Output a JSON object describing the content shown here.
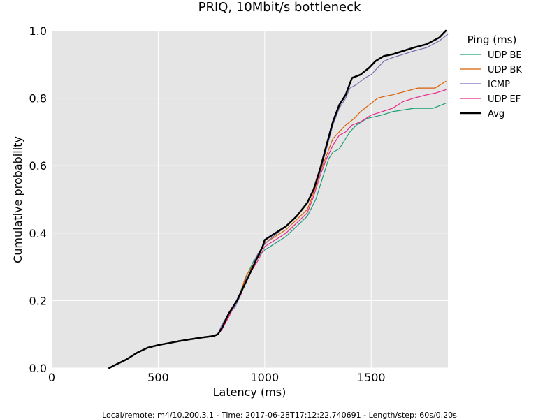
{
  "chart_data": {
    "type": "line",
    "title": "PRIQ, 10Mbit/s bottleneck",
    "xlabel": "Latency (ms)",
    "ylabel": "Cumulative probability",
    "xlim": [
      0,
      1860
    ],
    "ylim": [
      0,
      1.0
    ],
    "x_ticks": [
      "0",
      "500",
      "1000",
      "1500"
    ],
    "x_tick_values": [
      0,
      500,
      1000,
      1500
    ],
    "y_ticks": [
      "0.0",
      "0.2",
      "0.4",
      "0.6",
      "0.8",
      "1.0"
    ],
    "y_tick_values": [
      0,
      0.2,
      0.4,
      0.6,
      0.8,
      1.0
    ],
    "grid": true,
    "background": "#e5e5e5",
    "legend": {
      "title": "Ping (ms)",
      "placement": "outside-right"
    },
    "footer": "Local/remote: m4/10.200.3.1 - Time: 2017-06-28T17:12:22.740691 - Length/step: 60s/0.20s",
    "series": [
      {
        "name": "UDP BE",
        "color": "#1b9e77",
        "width": 1.2,
        "points": [
          [
            780,
            0.1
          ],
          [
            800,
            0.12
          ],
          [
            830,
            0.16
          ],
          [
            870,
            0.2
          ],
          [
            900,
            0.25
          ],
          [
            920,
            0.28
          ],
          [
            950,
            0.32
          ],
          [
            970,
            0.33
          ],
          [
            1000,
            0.35
          ],
          [
            1050,
            0.37
          ],
          [
            1100,
            0.39
          ],
          [
            1150,
            0.42
          ],
          [
            1200,
            0.45
          ],
          [
            1240,
            0.5
          ],
          [
            1270,
            0.56
          ],
          [
            1300,
            0.62
          ],
          [
            1320,
            0.64
          ],
          [
            1350,
            0.65
          ],
          [
            1380,
            0.68
          ],
          [
            1400,
            0.7
          ],
          [
            1430,
            0.72
          ],
          [
            1480,
            0.74
          ],
          [
            1550,
            0.75
          ],
          [
            1600,
            0.76
          ],
          [
            1700,
            0.77
          ],
          [
            1790,
            0.77
          ],
          [
            1850,
            0.785
          ]
        ]
      },
      {
        "name": "UDP BK",
        "color": "#d95f02",
        "width": 1.2,
        "points": [
          [
            780,
            0.1
          ],
          [
            800,
            0.12
          ],
          [
            830,
            0.15
          ],
          [
            870,
            0.2
          ],
          [
            890,
            0.23
          ],
          [
            910,
            0.27
          ],
          [
            940,
            0.3
          ],
          [
            970,
            0.33
          ],
          [
            1000,
            0.37
          ],
          [
            1050,
            0.39
          ],
          [
            1100,
            0.41
          ],
          [
            1150,
            0.44
          ],
          [
            1200,
            0.47
          ],
          [
            1230,
            0.52
          ],
          [
            1260,
            0.58
          ],
          [
            1290,
            0.63
          ],
          [
            1320,
            0.68
          ],
          [
            1350,
            0.7
          ],
          [
            1380,
            0.72
          ],
          [
            1420,
            0.74
          ],
          [
            1450,
            0.76
          ],
          [
            1490,
            0.78
          ],
          [
            1530,
            0.8
          ],
          [
            1560,
            0.805
          ],
          [
            1600,
            0.81
          ],
          [
            1660,
            0.82
          ],
          [
            1720,
            0.83
          ],
          [
            1800,
            0.83
          ],
          [
            1850,
            0.85
          ]
        ]
      },
      {
        "name": "ICMP",
        "color": "#7570b3",
        "width": 1.2,
        "points": [
          [
            270,
            0.0
          ],
          [
            300,
            0.01
          ],
          [
            350,
            0.025
          ],
          [
            400,
            0.045
          ],
          [
            450,
            0.06
          ],
          [
            500,
            0.068
          ],
          [
            550,
            0.074
          ],
          [
            600,
            0.08
          ],
          [
            650,
            0.085
          ],
          [
            700,
            0.09
          ],
          [
            760,
            0.095
          ],
          [
            780,
            0.1
          ],
          [
            800,
            0.13
          ],
          [
            830,
            0.16
          ],
          [
            860,
            0.18
          ],
          [
            890,
            0.22
          ],
          [
            910,
            0.26
          ],
          [
            940,
            0.29
          ],
          [
            960,
            0.33
          ],
          [
            990,
            0.36
          ],
          [
            1020,
            0.38
          ],
          [
            1060,
            0.4
          ],
          [
            1100,
            0.42
          ],
          [
            1150,
            0.45
          ],
          [
            1200,
            0.49
          ],
          [
            1230,
            0.53
          ],
          [
            1260,
            0.58
          ],
          [
            1290,
            0.65
          ],
          [
            1320,
            0.72
          ],
          [
            1350,
            0.77
          ],
          [
            1380,
            0.8
          ],
          [
            1400,
            0.83
          ],
          [
            1430,
            0.84
          ],
          [
            1470,
            0.86
          ],
          [
            1500,
            0.87
          ],
          [
            1530,
            0.89
          ],
          [
            1560,
            0.91
          ],
          [
            1600,
            0.92
          ],
          [
            1650,
            0.93
          ],
          [
            1700,
            0.94
          ],
          [
            1760,
            0.95
          ],
          [
            1820,
            0.97
          ],
          [
            1860,
            0.99
          ]
        ]
      },
      {
        "name": "UDP EF",
        "color": "#e7298a",
        "width": 1.2,
        "points": [
          [
            780,
            0.1
          ],
          [
            800,
            0.115
          ],
          [
            830,
            0.15
          ],
          [
            860,
            0.19
          ],
          [
            890,
            0.22
          ],
          [
            910,
            0.26
          ],
          [
            940,
            0.29
          ],
          [
            970,
            0.32
          ],
          [
            1000,
            0.36
          ],
          [
            1050,
            0.38
          ],
          [
            1100,
            0.4
          ],
          [
            1150,
            0.43
          ],
          [
            1200,
            0.46
          ],
          [
            1230,
            0.51
          ],
          [
            1260,
            0.57
          ],
          [
            1290,
            0.62
          ],
          [
            1320,
            0.66
          ],
          [
            1350,
            0.69
          ],
          [
            1380,
            0.7
          ],
          [
            1410,
            0.72
          ],
          [
            1450,
            0.73
          ],
          [
            1500,
            0.75
          ],
          [
            1550,
            0.76
          ],
          [
            1600,
            0.77
          ],
          [
            1650,
            0.79
          ],
          [
            1700,
            0.8
          ],
          [
            1760,
            0.81
          ],
          [
            1800,
            0.815
          ],
          [
            1850,
            0.825
          ]
        ]
      },
      {
        "name": "Avg",
        "color": "#000000",
        "width": 2.5,
        "points": [
          [
            270,
            0.0
          ],
          [
            300,
            0.01
          ],
          [
            350,
            0.025
          ],
          [
            400,
            0.045
          ],
          [
            450,
            0.06
          ],
          [
            500,
            0.068
          ],
          [
            550,
            0.074
          ],
          [
            600,
            0.08
          ],
          [
            650,
            0.085
          ],
          [
            700,
            0.09
          ],
          [
            760,
            0.095
          ],
          [
            780,
            0.1
          ],
          [
            800,
            0.12
          ],
          [
            830,
            0.16
          ],
          [
            870,
            0.2
          ],
          [
            900,
            0.24
          ],
          [
            930,
            0.28
          ],
          [
            960,
            0.32
          ],
          [
            990,
            0.36
          ],
          [
            1000,
            0.38
          ],
          [
            1050,
            0.4
          ],
          [
            1100,
            0.42
          ],
          [
            1150,
            0.45
          ],
          [
            1200,
            0.49
          ],
          [
            1230,
            0.53
          ],
          [
            1260,
            0.59
          ],
          [
            1290,
            0.66
          ],
          [
            1320,
            0.73
          ],
          [
            1350,
            0.78
          ],
          [
            1380,
            0.81
          ],
          [
            1410,
            0.86
          ],
          [
            1450,
            0.87
          ],
          [
            1490,
            0.89
          ],
          [
            1520,
            0.91
          ],
          [
            1560,
            0.925
          ],
          [
            1600,
            0.93
          ],
          [
            1650,
            0.94
          ],
          [
            1700,
            0.95
          ],
          [
            1760,
            0.96
          ],
          [
            1820,
            0.98
          ],
          [
            1850,
            1.0
          ]
        ]
      }
    ]
  }
}
